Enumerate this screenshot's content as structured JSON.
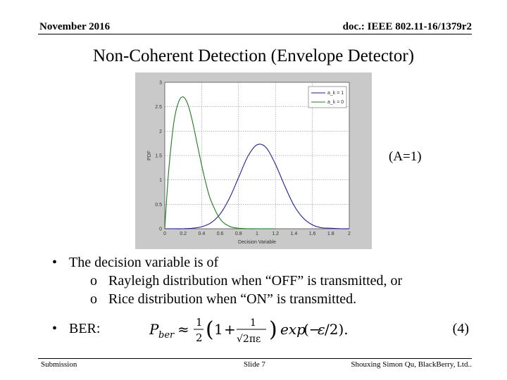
{
  "header": {
    "date": "November 2016",
    "doc_id": "doc.: IEEE 802.11-16/1379r2"
  },
  "title": "Non-Coherent Detection (Envelope Detector)",
  "figure_note": "(A=1)",
  "bullets": {
    "decision": "The decision variable is of",
    "sub": [
      "Rayleigh distribution when “OFF” is transmitted, or",
      "Rice distribution when “ON” is transmitted."
    ],
    "ber_label": "BER:",
    "eq_number": "(4)"
  },
  "footer": {
    "left": "Submission",
    "center": "Slide 7",
    "right": "Shouxing Simon Qu, BlackBerry, Ltd.."
  },
  "chart_data": {
    "type": "line",
    "xlabel": "Decision Variable",
    "ylabel": "PDF",
    "xlim": [
      0,
      2
    ],
    "ylim": [
      0,
      3
    ],
    "xticks": [
      "0",
      "0.2",
      "0.4",
      "0.6",
      "0.8",
      "1",
      "1.2",
      "1.4",
      "1.6",
      "1.8",
      "2"
    ],
    "yticks": [
      "0",
      "0.5",
      "1",
      "1.5",
      "2",
      "2.5",
      "3"
    ],
    "grid": true,
    "legend_position": "top-right",
    "series": [
      {
        "name": "a_k = 1",
        "color": "#1f1f8f",
        "x": [
          0,
          0.1,
          0.2,
          0.3,
          0.4,
          0.5,
          0.6,
          0.7,
          0.8,
          0.9,
          1.0,
          1.1,
          1.2,
          1.3,
          1.4,
          1.5,
          1.6,
          1.7,
          1.8,
          1.9,
          2.0
        ],
        "y": [
          0,
          0,
          0,
          0.01,
          0.04,
          0.12,
          0.3,
          0.62,
          1.05,
          1.48,
          1.72,
          1.66,
          1.32,
          0.88,
          0.48,
          0.22,
          0.08,
          0.02,
          0.01,
          0,
          0
        ]
      },
      {
        "name": "a_k = 0",
        "color": "#1e7a1e",
        "x": [
          0,
          0.02,
          0.05,
          0.1,
          0.15,
          0.2,
          0.25,
          0.3,
          0.35,
          0.4,
          0.45,
          0.5,
          0.6,
          0.7,
          0.8,
          0.9,
          1.0,
          1.2
        ],
        "y": [
          0,
          0.6,
          1.35,
          2.2,
          2.6,
          2.7,
          2.55,
          2.2,
          1.75,
          1.3,
          0.9,
          0.58,
          0.2,
          0.05,
          0.01,
          0,
          0,
          0
        ]
      }
    ]
  }
}
